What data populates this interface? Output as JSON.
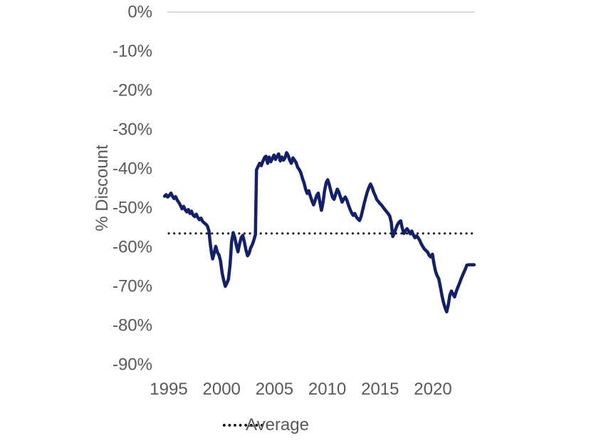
{
  "chart_data": {
    "type": "line",
    "title": "",
    "xlabel": "",
    "ylabel": "% Discount",
    "xlim": [
      1994.4,
      2024.0
    ],
    "ylim": [
      -90,
      0
    ],
    "grid": "top 0% axis line only, no vertical axis lines",
    "x_ticks": {
      "values": [
        1995,
        2000,
        2005,
        2010,
        2015,
        2020
      ],
      "labels": [
        "1995",
        "2000",
        "2005",
        "2010",
        "2015",
        "2020"
      ]
    },
    "y_ticks": {
      "values": [
        0,
        -10,
        -20,
        -30,
        -40,
        -50,
        -60,
        -70,
        -80,
        -90
      ],
      "labels": [
        "0%",
        "-10%",
        "-20%",
        "-30%",
        "-40%",
        "-50%",
        "-60%",
        "-70%",
        "-80%",
        "-90%"
      ]
    },
    "legend": {
      "label": "Average",
      "style": "dotted",
      "position": "bottom-center"
    },
    "average": {
      "name": "Average",
      "value": -56.5,
      "color": "#000000",
      "line_style": "dotted"
    },
    "series": [
      {
        "name": "% Discount",
        "color": "#12206B",
        "points": [
          [
            1994.6,
            -47.0
          ],
          [
            1994.75,
            -46.6
          ],
          [
            1994.9,
            -47.2
          ],
          [
            1995.05,
            -46.8
          ],
          [
            1995.2,
            -46.2
          ],
          [
            1995.35,
            -47.0
          ],
          [
            1995.5,
            -47.6
          ],
          [
            1995.65,
            -47.1
          ],
          [
            1995.8,
            -48.0
          ],
          [
            1995.95,
            -48.6
          ],
          [
            1996.1,
            -49.3
          ],
          [
            1996.25,
            -50.2
          ],
          [
            1996.4,
            -49.6
          ],
          [
            1996.55,
            -50.4
          ],
          [
            1996.7,
            -51.0
          ],
          [
            1996.85,
            -50.4
          ],
          [
            1997.0,
            -51.4
          ],
          [
            1997.15,
            -50.8
          ],
          [
            1997.3,
            -51.8
          ],
          [
            1997.45,
            -52.2
          ],
          [
            1997.6,
            -51.6
          ],
          [
            1997.75,
            -52.4
          ],
          [
            1997.9,
            -53.0
          ],
          [
            1998.05,
            -52.6
          ],
          [
            1998.2,
            -53.4
          ],
          [
            1998.35,
            -53.8
          ],
          [
            1998.5,
            -54.1
          ],
          [
            1998.65,
            -54.6
          ],
          [
            1998.8,
            -55.8
          ],
          [
            1998.9,
            -58.5
          ],
          [
            1999.05,
            -61.5
          ],
          [
            1999.15,
            -63.0
          ],
          [
            1999.3,
            -61.5
          ],
          [
            1999.45,
            -59.8
          ],
          [
            1999.6,
            -61.3
          ],
          [
            1999.75,
            -62.0
          ],
          [
            1999.9,
            -63.5
          ],
          [
            2000.05,
            -66.5
          ],
          [
            2000.2,
            -68.5
          ],
          [
            2000.35,
            -70.0
          ],
          [
            2000.5,
            -69.2
          ],
          [
            2000.65,
            -68.2
          ],
          [
            2000.8,
            -64.5
          ],
          [
            2000.95,
            -58.5
          ],
          [
            2001.1,
            -56.3
          ],
          [
            2001.25,
            -57.6
          ],
          [
            2001.4,
            -59.6
          ],
          [
            2001.55,
            -61.2
          ],
          [
            2001.7,
            -59.2
          ],
          [
            2001.85,
            -57.6
          ],
          [
            2002.0,
            -57.0
          ],
          [
            2002.15,
            -58.6
          ],
          [
            2002.3,
            -60.6
          ],
          [
            2002.45,
            -62.2
          ],
          [
            2002.6,
            -61.6
          ],
          [
            2002.75,
            -60.2
          ],
          [
            2002.9,
            -59.4
          ],
          [
            2003.05,
            -58.2
          ],
          [
            2003.2,
            -56.8
          ],
          [
            2003.3,
            -40.3
          ],
          [
            2003.45,
            -39.4
          ],
          [
            2003.6,
            -38.6
          ],
          [
            2003.75,
            -39.2
          ],
          [
            2003.9,
            -38.1
          ],
          [
            2004.05,
            -37.2
          ],
          [
            2004.2,
            -36.8
          ],
          [
            2004.35,
            -38.6
          ],
          [
            2004.5,
            -37.0
          ],
          [
            2004.65,
            -38.2
          ],
          [
            2004.8,
            -37.4
          ],
          [
            2004.95,
            -36.5
          ],
          [
            2005.1,
            -37.6
          ],
          [
            2005.25,
            -36.8
          ],
          [
            2005.4,
            -36.2
          ],
          [
            2005.55,
            -38.0
          ],
          [
            2005.7,
            -37.0
          ],
          [
            2005.85,
            -37.8
          ],
          [
            2006.0,
            -37.2
          ],
          [
            2006.15,
            -35.9
          ],
          [
            2006.3,
            -36.6
          ],
          [
            2006.45,
            -37.8
          ],
          [
            2006.6,
            -38.6
          ],
          [
            2006.75,
            -37.2
          ],
          [
            2006.9,
            -37.8
          ],
          [
            2007.05,
            -38.4
          ],
          [
            2007.2,
            -39.6
          ],
          [
            2007.35,
            -40.2
          ],
          [
            2007.5,
            -41.0
          ],
          [
            2007.65,
            -42.4
          ],
          [
            2007.8,
            -43.6
          ],
          [
            2007.95,
            -45.2
          ],
          [
            2008.1,
            -46.3
          ],
          [
            2008.25,
            -45.6
          ],
          [
            2008.4,
            -47.0
          ],
          [
            2008.55,
            -48.2
          ],
          [
            2008.7,
            -49.2
          ],
          [
            2008.85,
            -48.1
          ],
          [
            2009.0,
            -46.8
          ],
          [
            2009.15,
            -46.2
          ],
          [
            2009.3,
            -48.5
          ],
          [
            2009.45,
            -50.6
          ],
          [
            2009.6,
            -48.5
          ],
          [
            2009.75,
            -45.5
          ],
          [
            2009.9,
            -43.5
          ],
          [
            2010.05,
            -42.8
          ],
          [
            2010.2,
            -44.2
          ],
          [
            2010.35,
            -45.8
          ],
          [
            2010.5,
            -47.3
          ],
          [
            2010.65,
            -47.8
          ],
          [
            2010.8,
            -46.4
          ],
          [
            2010.95,
            -45.2
          ],
          [
            2011.1,
            -46.0
          ],
          [
            2011.25,
            -47.2
          ],
          [
            2011.4,
            -48.5
          ],
          [
            2011.55,
            -47.8
          ],
          [
            2011.7,
            -47.2
          ],
          [
            2011.85,
            -48.0
          ],
          [
            2012.0,
            -49.2
          ],
          [
            2012.15,
            -50.3
          ],
          [
            2012.3,
            -51.2
          ],
          [
            2012.45,
            -51.9
          ],
          [
            2012.6,
            -51.4
          ],
          [
            2012.75,
            -52.3
          ],
          [
            2012.9,
            -52.8
          ],
          [
            2013.05,
            -53.2
          ],
          [
            2013.2,
            -52.2
          ],
          [
            2013.35,
            -50.5
          ],
          [
            2013.5,
            -48.8
          ],
          [
            2013.65,
            -47.2
          ],
          [
            2013.8,
            -45.8
          ],
          [
            2013.95,
            -44.7
          ],
          [
            2014.1,
            -43.9
          ],
          [
            2014.25,
            -44.8
          ],
          [
            2014.4,
            -46.0
          ],
          [
            2014.55,
            -46.9
          ],
          [
            2014.7,
            -47.9
          ],
          [
            2014.85,
            -48.4
          ],
          [
            2015.0,
            -48.9
          ],
          [
            2015.15,
            -49.3
          ],
          [
            2015.3,
            -49.9
          ],
          [
            2015.45,
            -50.4
          ],
          [
            2015.6,
            -50.9
          ],
          [
            2015.75,
            -51.4
          ],
          [
            2015.9,
            -52.0
          ],
          [
            2016.05,
            -53.6
          ],
          [
            2016.2,
            -57.3
          ],
          [
            2016.35,
            -56.4
          ],
          [
            2016.5,
            -55.2
          ],
          [
            2016.65,
            -54.2
          ],
          [
            2016.8,
            -53.6
          ],
          [
            2016.95,
            -53.3
          ],
          [
            2017.1,
            -55.2
          ],
          [
            2017.25,
            -56.5
          ],
          [
            2017.4,
            -55.8
          ],
          [
            2017.55,
            -55.3
          ],
          [
            2017.7,
            -55.9
          ],
          [
            2017.85,
            -56.6
          ],
          [
            2018.0,
            -55.9
          ],
          [
            2018.15,
            -56.9
          ],
          [
            2018.3,
            -57.6
          ],
          [
            2018.45,
            -57.1
          ],
          [
            2018.6,
            -57.6
          ],
          [
            2018.75,
            -58.3
          ],
          [
            2018.9,
            -59.2
          ],
          [
            2019.05,
            -59.9
          ],
          [
            2019.2,
            -60.5
          ],
          [
            2019.35,
            -60.9
          ],
          [
            2019.5,
            -61.3
          ],
          [
            2019.65,
            -62.1
          ],
          [
            2019.8,
            -62.5
          ],
          [
            2019.95,
            -61.8
          ],
          [
            2020.1,
            -64.3
          ],
          [
            2020.25,
            -66.2
          ],
          [
            2020.4,
            -67.3
          ],
          [
            2020.55,
            -68.1
          ],
          [
            2020.7,
            -70.1
          ],
          [
            2020.85,
            -72.3
          ],
          [
            2021.0,
            -74.1
          ],
          [
            2021.15,
            -75.5
          ],
          [
            2021.3,
            -76.5
          ],
          [
            2021.45,
            -74.8
          ],
          [
            2021.6,
            -72.3
          ],
          [
            2021.75,
            -71.2
          ],
          [
            2021.9,
            -72.0
          ],
          [
            2022.05,
            -72.7
          ],
          [
            2022.2,
            -71.4
          ],
          [
            2022.35,
            -70.3
          ],
          [
            2022.5,
            -69.3
          ],
          [
            2022.65,
            -68.2
          ],
          [
            2022.8,
            -67.2
          ],
          [
            2022.95,
            -66.3
          ],
          [
            2023.1,
            -65.4
          ],
          [
            2023.2,
            -64.6
          ],
          [
            2023.35,
            -64.5
          ],
          [
            2023.6,
            -64.5
          ],
          [
            2023.9,
            -64.5
          ]
        ]
      }
    ]
  },
  "styles": {
    "background": "#FFFFFF",
    "axis_line_color": "#D9D9D9",
    "tick_label_color": "#595959",
    "series_line_color": "#12206B",
    "average_line_color": "#000000"
  }
}
